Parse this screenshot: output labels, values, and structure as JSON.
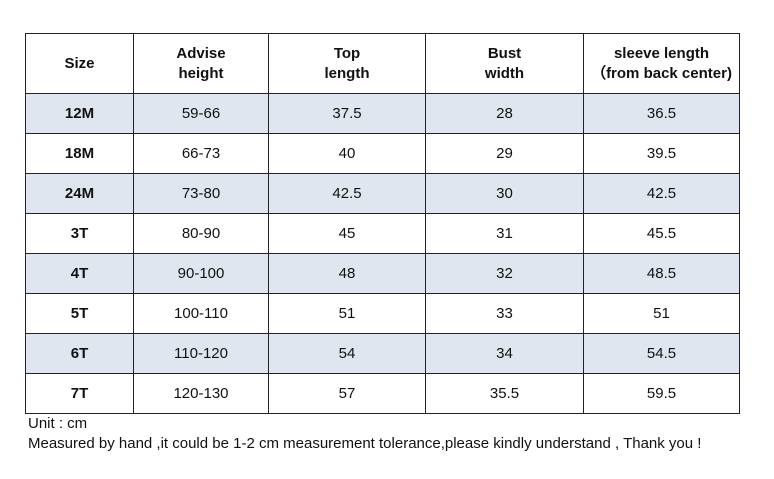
{
  "table": {
    "header": [
      [
        "Size"
      ],
      [
        "Advise",
        "height"
      ],
      [
        "Top",
        "length"
      ],
      [
        "Bust",
        "width"
      ],
      [
        "sleeve length",
        "（from back center)"
      ]
    ],
    "rows": [
      [
        "12M",
        "59-66",
        "37.5",
        "28",
        "36.5"
      ],
      [
        "18M",
        "66-73",
        "40",
        "29",
        "39.5"
      ],
      [
        "24M",
        "73-80",
        "42.5",
        "30",
        "42.5"
      ],
      [
        "3T",
        "80-90",
        "45",
        "31",
        "45.5"
      ],
      [
        "4T",
        "90-100",
        "48",
        "32",
        "48.5"
      ],
      [
        "5T",
        "100-110",
        "51",
        "33",
        "51"
      ],
      [
        "6T",
        "110-120",
        "54",
        "34",
        "54.5"
      ],
      [
        "7T",
        "120-130",
        "57",
        "35.5",
        "59.5"
      ]
    ]
  },
  "notes": [
    "Unit : cm",
    "Measured by hand ,it could be 1-2 cm measurement tolerance,please kindly understand , Thank you !"
  ]
}
